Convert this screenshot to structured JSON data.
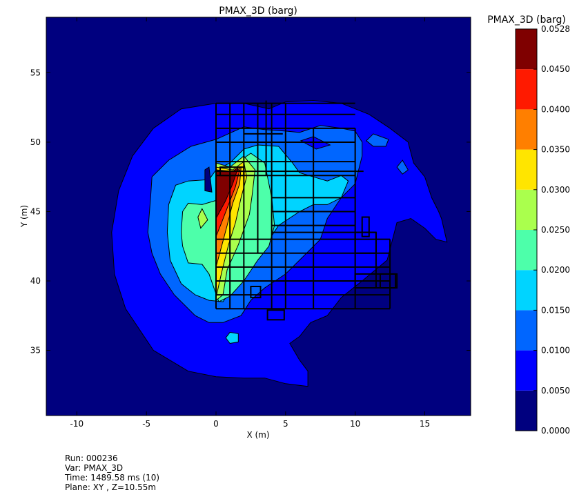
{
  "chart_data": {
    "type": "contour",
    "title": "PMAX_3D (barg)",
    "xlabel": "X (m)",
    "ylabel": "Y (m)",
    "xlim": [
      -12.2,
      18.3
    ],
    "ylim": [
      30.3,
      59
    ],
    "xticks": [
      -10,
      -5,
      0,
      5,
      10,
      15
    ],
    "yticks": [
      35,
      40,
      45,
      50,
      55
    ],
    "colorbar": {
      "title": "PMAX_3D (barg)",
      "levels": [
        0.0,
        0.005,
        0.01,
        0.015,
        0.02,
        0.025,
        0.03,
        0.035,
        0.04,
        0.045,
        0.0528
      ],
      "tick_labels": [
        "0.0000",
        "0.0050",
        "0.0100",
        "0.0150",
        "0.0200",
        "0.0250",
        "0.0300",
        "0.0350",
        "0.0400",
        "0.0450",
        "0.0528"
      ],
      "colors": [
        "#00007f",
        "#0000ff",
        "#0066ff",
        "#00d4ff",
        "#4dffaa",
        "#aaff4d",
        "#ffe500",
        "#ff7f00",
        "#ff1a00",
        "#7f0000"
      ]
    },
    "contour_regions": [
      {
        "level_index": 1,
        "points": [
          [
            -7.5,
            43.5
          ],
          [
            -7,
            46.5
          ],
          [
            -6,
            49
          ],
          [
            -4.5,
            51
          ],
          [
            -2.5,
            52.4
          ],
          [
            0,
            52.8
          ],
          [
            2,
            52.8
          ],
          [
            3.8,
            52.4
          ],
          [
            5,
            52.9
          ],
          [
            7,
            53
          ],
          [
            9,
            52.8
          ],
          [
            11,
            52
          ],
          [
            12.5,
            51
          ],
          [
            13.8,
            50
          ],
          [
            14.2,
            48.5
          ],
          [
            15,
            47.5
          ],
          [
            15.5,
            46
          ],
          [
            16,
            45
          ],
          [
            16.2,
            44.5
          ],
          [
            16.6,
            42.8
          ],
          [
            15.8,
            43
          ],
          [
            15,
            43.8
          ],
          [
            14,
            44.5
          ],
          [
            13,
            44.2
          ],
          [
            12.3,
            41.5
          ],
          [
            10.5,
            40
          ],
          [
            9,
            38.8
          ],
          [
            8,
            37.5
          ],
          [
            6.8,
            37
          ],
          [
            6,
            36
          ],
          [
            5.3,
            35.5
          ],
          [
            6,
            34.3
          ],
          [
            6.6,
            33.5
          ],
          [
            6.6,
            32.4
          ],
          [
            5,
            32.6
          ],
          [
            3.5,
            33
          ],
          [
            2,
            33
          ],
          [
            0,
            33.1
          ],
          [
            -2,
            33.5
          ],
          [
            -4.5,
            35
          ],
          [
            -6.5,
            38
          ],
          [
            -7.3,
            40.5
          ]
        ]
      },
      {
        "level_index": 2,
        "points": [
          [
            -4.9,
            43.5
          ],
          [
            -4.7,
            46
          ],
          [
            -4.6,
            47.5
          ],
          [
            -3.4,
            48.7
          ],
          [
            -1.8,
            49.7
          ],
          [
            0,
            50.2
          ],
          [
            2,
            51.1
          ],
          [
            3.5,
            50.9
          ],
          [
            5,
            50.8
          ],
          [
            6,
            50.7
          ],
          [
            7.5,
            51.2
          ],
          [
            9,
            51
          ],
          [
            10,
            50.8
          ],
          [
            10.5,
            50
          ],
          [
            10.5,
            49
          ],
          [
            10,
            47
          ],
          [
            9,
            46
          ],
          [
            8,
            44.5
          ],
          [
            7.5,
            43
          ],
          [
            6.5,
            42
          ],
          [
            5,
            40.5
          ],
          [
            3.5,
            39.5
          ],
          [
            2.5,
            38.6
          ],
          [
            1.8,
            37.5
          ],
          [
            0.5,
            37
          ],
          [
            -0.5,
            37
          ],
          [
            -1.5,
            37.5
          ],
          [
            -3,
            39
          ],
          [
            -4,
            40.5
          ],
          [
            -4.6,
            42
          ]
        ]
      },
      {
        "level_index": 3,
        "points": [
          [
            -3.5,
            43.5
          ],
          [
            -3.4,
            45.5
          ],
          [
            -2.9,
            46.9
          ],
          [
            -2,
            47.2
          ],
          [
            -0.5,
            47.3
          ],
          [
            0,
            48
          ],
          [
            1,
            48.5
          ],
          [
            2,
            49.5
          ],
          [
            3,
            49.8
          ],
          [
            4.5,
            49.7
          ],
          [
            5.5,
            48.5
          ],
          [
            6,
            47.8
          ],
          [
            7,
            47.5
          ],
          [
            8,
            47.2
          ],
          [
            9,
            47.6
          ],
          [
            9.5,
            47.2
          ],
          [
            9,
            46
          ],
          [
            8,
            45.5
          ],
          [
            7,
            45.5
          ],
          [
            6,
            45
          ],
          [
            4.5,
            44
          ],
          [
            3.5,
            42.5
          ],
          [
            2.5,
            41
          ],
          [
            1.5,
            40
          ],
          [
            0.5,
            38.5
          ],
          [
            -0.5,
            38.6
          ],
          [
            -1.5,
            39
          ],
          [
            -2.5,
            39.8
          ],
          [
            -3.3,
            41.5
          ]
        ]
      },
      {
        "level_index": 4,
        "points": [
          [
            -2.5,
            43.5
          ],
          [
            -2.4,
            45
          ],
          [
            -2,
            45.6
          ],
          [
            -1,
            45.5
          ],
          [
            0,
            45.8
          ],
          [
            0.5,
            46.5
          ],
          [
            1,
            47.5
          ],
          [
            1.5,
            48.5
          ],
          [
            2.5,
            49.2
          ],
          [
            3.5,
            48.5
          ],
          [
            4,
            46
          ],
          [
            4.2,
            44
          ],
          [
            3.8,
            42.5
          ],
          [
            3,
            41.5
          ],
          [
            2,
            40
          ],
          [
            1,
            38.9
          ],
          [
            0.2,
            38.5
          ],
          [
            -0.5,
            40.5
          ],
          [
            -1,
            41.2
          ],
          [
            -2,
            41.3
          ],
          [
            -2.4,
            42.5
          ]
        ]
      },
      {
        "level_index": 5,
        "points": [
          [
            0,
            38.6
          ],
          [
            0,
            48.5
          ],
          [
            1,
            48.2
          ],
          [
            2,
            49
          ],
          [
            2.8,
            48
          ],
          [
            2.6,
            46.2
          ],
          [
            2.4,
            44.8
          ],
          [
            1.6,
            42.6
          ],
          [
            0.8,
            40.8
          ],
          [
            0.5,
            39
          ]
        ]
      },
      {
        "level_index": 6,
        "points": [
          [
            0,
            38.8
          ],
          [
            0,
            48.2
          ],
          [
            1.2,
            48
          ],
          [
            2,
            48.6
          ],
          [
            2.2,
            47.5
          ],
          [
            1.8,
            46
          ],
          [
            1.4,
            44.2
          ],
          [
            0.9,
            42.6
          ],
          [
            0.4,
            40.6
          ]
        ]
      },
      {
        "level_index": 7,
        "points": [
          [
            0,
            41
          ],
          [
            0,
            48
          ],
          [
            1.3,
            47.8
          ],
          [
            1.8,
            48.2
          ],
          [
            1.7,
            47
          ],
          [
            1.2,
            45.6
          ],
          [
            0.8,
            44
          ],
          [
            0.4,
            42.5
          ]
        ]
      },
      {
        "level_index": 8,
        "points": [
          [
            0,
            43.2
          ],
          [
            0,
            48
          ],
          [
            1.3,
            47.8
          ],
          [
            1.7,
            48
          ],
          [
            1.4,
            46.8
          ],
          [
            0.9,
            45.5
          ],
          [
            0.4,
            44.2
          ]
        ]
      },
      {
        "level_index": 9,
        "points": [
          [
            0,
            44.5
          ],
          [
            0,
            48
          ],
          [
            1.2,
            47.9
          ],
          [
            1.6,
            48.2
          ],
          [
            1.2,
            47
          ],
          [
            0.7,
            45.8
          ]
        ]
      }
    ],
    "isolated_regions": [
      {
        "level_index": 1,
        "points": [
          [
            6.1,
            50.1
          ],
          [
            7,
            50.4
          ],
          [
            8.2,
            49.8
          ],
          [
            7.2,
            49.5
          ]
        ]
      },
      {
        "level_index": 2,
        "points": [
          [
            10.8,
            50.1
          ],
          [
            11.3,
            50.6
          ],
          [
            12.4,
            50.2
          ],
          [
            12.2,
            49.7
          ],
          [
            11.3,
            49.7
          ]
        ]
      },
      {
        "level_index": 2,
        "points": [
          [
            13,
            48.2
          ],
          [
            13.4,
            48.7
          ],
          [
            13.8,
            48
          ],
          [
            13.4,
            47.7
          ]
        ]
      },
      {
        "level_index": 3,
        "points": [
          [
            0.7,
            35.9
          ],
          [
            1,
            36.3
          ],
          [
            1.6,
            36.2
          ],
          [
            1.6,
            35.6
          ],
          [
            1,
            35.5
          ]
        ]
      },
      {
        "level_index": 0,
        "points": [
          [
            -0.8,
            48
          ],
          [
            -0.5,
            48.2
          ],
          [
            -0.3,
            46.4
          ],
          [
            -0.8,
            46.5
          ]
        ]
      },
      {
        "level_index": 5,
        "points": [
          [
            -1.3,
            44.6
          ],
          [
            -1,
            45.2
          ],
          [
            -0.6,
            44.4
          ],
          [
            -1.1,
            43.8
          ]
        ]
      }
    ],
    "structure_lines": [
      [
        [
          0,
          52.8
        ],
        [
          10,
          52.8
        ]
      ],
      [
        [
          0,
          52
        ],
        [
          10,
          52
        ]
      ],
      [
        [
          0,
          51
        ],
        [
          10,
          51
        ]
      ],
      [
        [
          0,
          50
        ],
        [
          10,
          50
        ]
      ],
      [
        [
          0,
          48.6
        ],
        [
          10,
          48.6
        ]
      ],
      [
        [
          0,
          47.6
        ],
        [
          10,
          47.6
        ]
      ],
      [
        [
          0,
          47.9
        ],
        [
          10.6,
          47.9
        ]
      ],
      [
        [
          0,
          43
        ],
        [
          12.5,
          43
        ]
      ],
      [
        [
          0,
          42
        ],
        [
          12.5,
          42
        ]
      ],
      [
        [
          0,
          41
        ],
        [
          12.5,
          41
        ]
      ],
      [
        [
          0,
          40
        ],
        [
          12.5,
          40
        ]
      ],
      [
        [
          0,
          39
        ],
        [
          12.5,
          39
        ]
      ],
      [
        [
          0,
          38
        ],
        [
          12.5,
          38
        ]
      ],
      [
        [
          4,
          45
        ],
        [
          10,
          45
        ]
      ],
      [
        [
          4,
          44
        ],
        [
          10,
          44
        ]
      ],
      [
        [
          4,
          43.5
        ],
        [
          11.5,
          43.5
        ]
      ],
      [
        [
          4,
          46
        ],
        [
          10,
          46
        ]
      ],
      [
        [
          0,
          38
        ],
        [
          0,
          52.8
        ]
      ],
      [
        [
          1,
          38
        ],
        [
          1,
          52.8
        ]
      ],
      [
        [
          2,
          38
        ],
        [
          2,
          52.8
        ]
      ],
      [
        [
          3,
          42
        ],
        [
          3,
          52.8
        ]
      ],
      [
        [
          4,
          38
        ],
        [
          4,
          52.8
        ]
      ],
      [
        [
          5,
          38
        ],
        [
          5,
          52.8
        ]
      ],
      [
        [
          7,
          38
        ],
        [
          7,
          51
        ]
      ],
      [
        [
          10,
          38
        ],
        [
          10,
          51
        ]
      ],
      [
        [
          12.5,
          38
        ],
        [
          12.5,
          43
        ]
      ],
      [
        [
          11.5,
          39.5
        ],
        [
          11.5,
          43.5
        ]
      ],
      [
        [
          2,
          50.6
        ],
        [
          4.8,
          50.6
        ]
      ],
      [
        [
          3.6,
          47.6
        ],
        [
          3.6,
          53
        ]
      ]
    ],
    "structure_boxes": [
      [
        [
          2.5,
          38.8
        ],
        [
          3.2,
          39.6
        ]
      ],
      [
        [
          10,
          39.5
        ],
        [
          12.9,
          40.5
        ]
      ],
      [
        [
          11.8,
          39.5
        ],
        [
          13,
          40.5
        ]
      ],
      [
        [
          10.5,
          43.2
        ],
        [
          11,
          44.6
        ]
      ],
      [
        [
          3.7,
          37.2
        ],
        [
          4.9,
          37.9
        ]
      ],
      [
        [
          0.3,
          47.6
        ],
        [
          2,
          48.2
        ]
      ],
      [
        [
          10,
          42
        ],
        [
          11.5,
          43.5
        ]
      ]
    ]
  },
  "info": {
    "lines": [
      "Run: 000236",
      "Var: PMAX_3D",
      "Time: 1489.58 ms (10)",
      "Plane: XY , Z=10.55m"
    ]
  }
}
